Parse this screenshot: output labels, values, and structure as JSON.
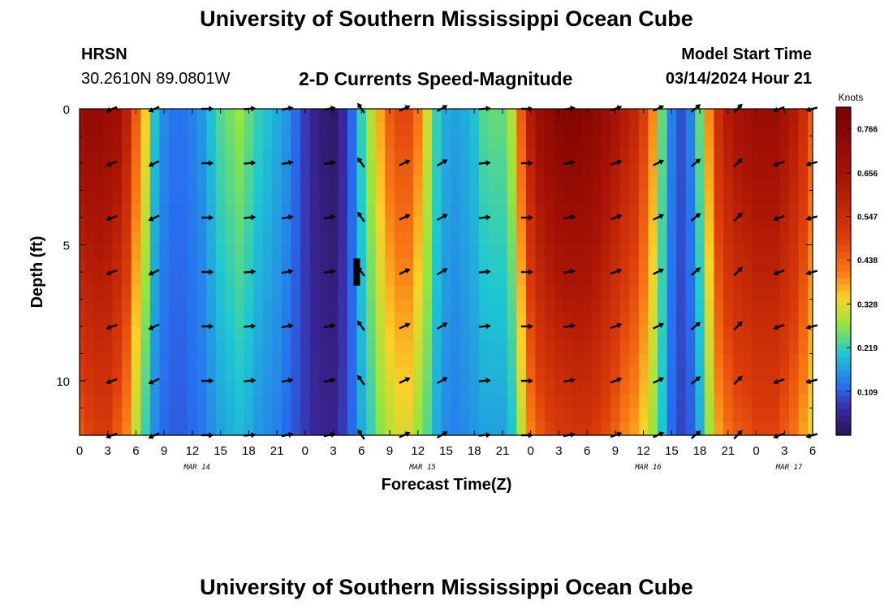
{
  "header": {
    "title": "University of Southern Mississippi Ocean Cube",
    "station_id": "HRSN",
    "station_coords": "30.2610N  89.0801W",
    "plot_title": "2-D Currents Speed-Magnitude",
    "model_label": "Model Start Time",
    "model_value": "03/14/2024 Hour 21"
  },
  "footer": {
    "title": "University of Southern Mississippi Ocean Cube"
  },
  "chart_data": {
    "type": "heatmap",
    "title": "2-D Currents Speed-Magnitude",
    "xlabel": "Forecast Time(Z)",
    "ylabel": "Depth (ft)",
    "x_unit": "hours since 03/14/2024 00Z",
    "xlim": [
      0,
      78
    ],
    "ylim": [
      0,
      12
    ],
    "y_inverted": true,
    "x_tick_hours": [
      0,
      3,
      6,
      9,
      12,
      15,
      18,
      21,
      24,
      27,
      30,
      33,
      36,
      39,
      42,
      45,
      48,
      51,
      54,
      57,
      60,
      63,
      66,
      69,
      72,
      75,
      78
    ],
    "x_tick_labels": [
      "0",
      "3",
      "6",
      "9",
      "12",
      "15",
      "18",
      "21",
      "0",
      "3",
      "6",
      "9",
      "12",
      "15",
      "18",
      "21",
      "0",
      "3",
      "6",
      "9",
      "12",
      "15",
      "18",
      "21",
      "0",
      "3",
      "6"
    ],
    "y_tick_values": [
      0,
      5,
      10
    ],
    "y_tick_labels": [
      "0",
      "5",
      "10"
    ],
    "day_labels": [
      {
        "hour": 12.5,
        "text": "MAR 14"
      },
      {
        "hour": 36.5,
        "text": "MAR 15"
      },
      {
        "hour": 60.5,
        "text": "MAR 16"
      },
      {
        "hour": 75.5,
        "text": "MAR 17"
      }
    ],
    "colorbar": {
      "unit": "Knots",
      "min": 0.0,
      "max": 0.82,
      "tick_values": [
        0.109,
        0.219,
        0.328,
        0.438,
        0.547,
        0.656,
        0.766
      ],
      "tick_labels": [
        "0.109",
        "0.219",
        "0.328",
        "0.438",
        "0.547",
        "0.656",
        "0.766"
      ]
    },
    "speed_profile_hours": [
      0,
      1,
      2,
      3,
      4,
      5,
      6,
      7,
      8,
      9,
      10,
      11,
      12,
      13,
      14,
      15,
      16,
      17,
      18,
      19,
      20,
      21,
      22,
      23,
      24,
      25,
      26,
      27,
      28,
      29,
      30,
      31,
      32,
      33,
      34,
      35,
      36,
      37,
      38,
      39,
      40,
      41,
      42,
      43,
      44,
      45,
      46,
      47,
      48,
      49,
      50,
      51,
      52,
      53,
      54,
      55,
      56,
      57,
      58,
      59,
      60,
      61,
      62,
      63,
      64,
      65,
      66,
      67,
      68,
      69,
      70,
      71,
      72,
      73,
      74,
      75,
      76,
      77,
      78
    ],
    "surface_speed_knots": [
      0.7,
      0.72,
      0.72,
      0.7,
      0.68,
      0.6,
      0.45,
      0.35,
      0.2,
      0.15,
      0.13,
      0.13,
      0.14,
      0.16,
      0.2,
      0.24,
      0.26,
      0.28,
      0.25,
      0.22,
      0.2,
      0.18,
      0.16,
      0.12,
      0.08,
      0.05,
      0.03,
      0.02,
      0.06,
      0.12,
      0.22,
      0.3,
      0.38,
      0.45,
      0.48,
      0.48,
      0.42,
      0.32,
      0.22,
      0.18,
      0.17,
      0.18,
      0.2,
      0.24,
      0.25,
      0.25,
      0.3,
      0.45,
      0.62,
      0.7,
      0.74,
      0.77,
      0.78,
      0.78,
      0.76,
      0.74,
      0.7,
      0.66,
      0.62,
      0.58,
      0.5,
      0.4,
      0.25,
      0.14,
      0.1,
      0.14,
      0.25,
      0.4,
      0.55,
      0.62,
      0.66,
      0.68,
      0.7,
      0.7,
      0.7,
      0.66,
      0.62,
      0.55,
      0.45
    ],
    "bottom_speed_knots": [
      0.45,
      0.48,
      0.5,
      0.5,
      0.45,
      0.4,
      0.3,
      0.22,
      0.15,
      0.12,
      0.11,
      0.11,
      0.12,
      0.13,
      0.15,
      0.17,
      0.18,
      0.19,
      0.18,
      0.16,
      0.15,
      0.14,
      0.12,
      0.1,
      0.08,
      0.06,
      0.05,
      0.05,
      0.08,
      0.12,
      0.18,
      0.22,
      0.27,
      0.3,
      0.32,
      0.32,
      0.28,
      0.24,
      0.18,
      0.15,
      0.14,
      0.15,
      0.16,
      0.17,
      0.17,
      0.17,
      0.2,
      0.3,
      0.4,
      0.45,
      0.48,
      0.5,
      0.51,
      0.52,
      0.52,
      0.5,
      0.47,
      0.44,
      0.4,
      0.38,
      0.34,
      0.28,
      0.2,
      0.12,
      0.09,
      0.11,
      0.18,
      0.28,
      0.38,
      0.42,
      0.45,
      0.46,
      0.48,
      0.48,
      0.48,
      0.45,
      0.42,
      0.38,
      0.33
    ],
    "vector_rows_depth_ft": [
      0,
      2,
      4,
      6,
      8,
      10,
      12
    ],
    "vector_columns_hours": [
      3.5,
      8,
      13.5,
      18,
      22,
      26.5,
      30,
      34.5,
      38.5,
      43,
      47.5,
      52,
      57,
      61.5,
      65.5,
      70,
      74.5,
      78
    ],
    "vector_angles_deg": [
      200,
      205,
      0,
      5,
      10,
      10,
      125,
      25,
      30,
      5,
      0,
      10,
      20,
      25,
      40,
      45,
      200,
      195
    ],
    "highlight_marker": {
      "hour": 29.5,
      "depth_from": 5.5,
      "depth_to": 6.5
    }
  }
}
